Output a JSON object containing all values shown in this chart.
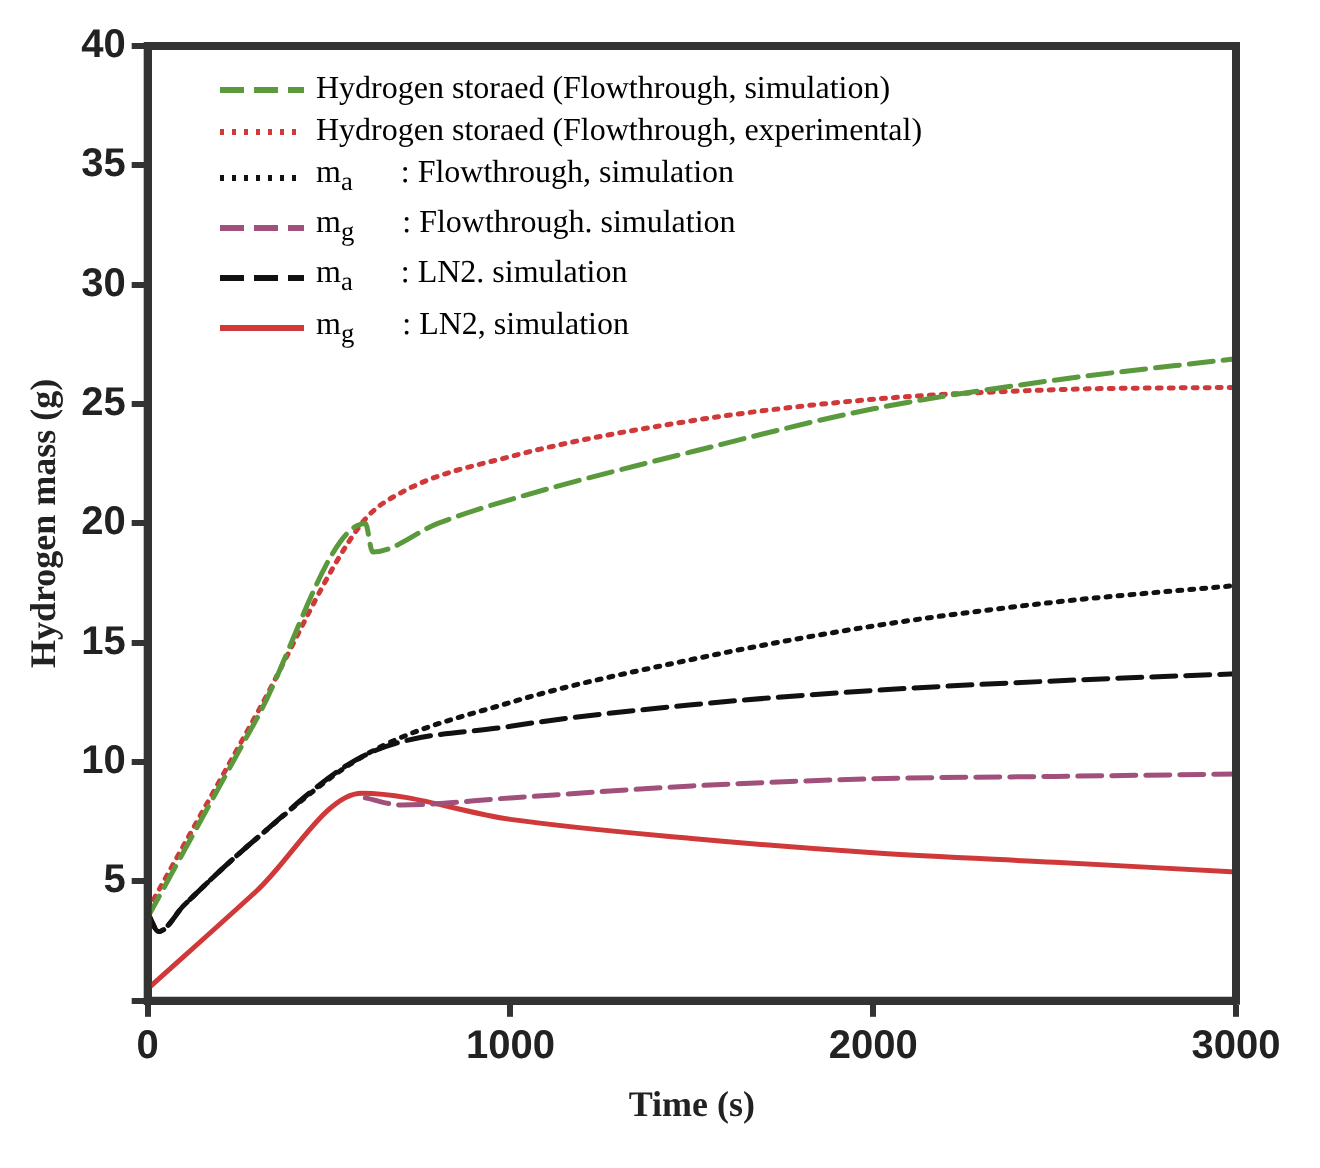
{
  "chart_data": {
    "type": "line",
    "xlabel": "Time (s)",
    "ylabel": "Hydrogen mass (g)",
    "xlim": [
      0,
      3000
    ],
    "xticks": [
      0,
      1000,
      2000,
      3000
    ],
    "ylim": [
      0,
      40
    ],
    "yticks": [
      {
        "value": 0,
        "label": null
      },
      5,
      10,
      15,
      20,
      25,
      30,
      35,
      40
    ],
    "grid": false,
    "legend": "top left",
    "marker": "none",
    "series": [
      {
        "name": "Hydrogen storaed (Flowthrough, simulation)",
        "color": "#5a9a3c",
        "line_style": "dashed",
        "x": [
          0,
          300,
          600,
          620,
          800,
          1000,
          1500,
          2000,
          2500,
          3000
        ],
        "values": [
          3.5,
          11.8,
          20,
          18.8,
          20,
          21,
          23,
          24.8,
          26,
          26.9
        ]
      },
      {
        "name": "Hydrogen storaed (Flowthrough, experimental)",
        "color": "#d0393a",
        "line_style": "dotted",
        "x": [
          0,
          300,
          590,
          700,
          1000,
          1500,
          2000,
          2500,
          3000
        ],
        "values": [
          3.8,
          12,
          20,
          21.3,
          22.8,
          24.3,
          25.2,
          25.6,
          25.7
        ]
      },
      {
        "name": "m$_{a}$      : Flowthrough, simulation",
        "color": "#111111",
        "line_style": "dotted",
        "x": [
          0,
          30,
          100,
          300,
          600,
          1000,
          1500,
          2000,
          2500,
          3000
        ],
        "values": [
          3.7,
          2.9,
          4,
          6.8,
          10.3,
          12.5,
          14.3,
          15.7,
          16.7,
          17.4
        ]
      },
      {
        "name": "m$_{g}$      : Flowthrough. simulation",
        "color": "#a0507a",
        "line_style": "dashed",
        "x": [
          600,
          700,
          1000,
          1500,
          2000,
          2500,
          3000
        ],
        "values": [
          8.5,
          8.2,
          8.5,
          9,
          9.3,
          9.4,
          9.5
        ]
      },
      {
        "name": "m$_{a}$      : LN2. simulation",
        "color": "#111111",
        "line_style": "dashed",
        "x": [
          0,
          30,
          100,
          300,
          600,
          1000,
          1500,
          2000,
          2500,
          3000
        ],
        "values": [
          3.7,
          2.9,
          4,
          6.8,
          10.3,
          11.5,
          12.4,
          13,
          13.4,
          13.7
        ]
      },
      {
        "name": "m$_{g}$      : LN2, simulation",
        "color": "#d0393a",
        "line_style": "solid",
        "x": [
          0,
          300,
          590,
          1000,
          1500,
          2000,
          2500,
          3000
        ],
        "values": [
          0.5,
          4.6,
          8.7,
          7.6,
          6.8,
          6.2,
          5.8,
          5.4
        ]
      }
    ]
  }
}
